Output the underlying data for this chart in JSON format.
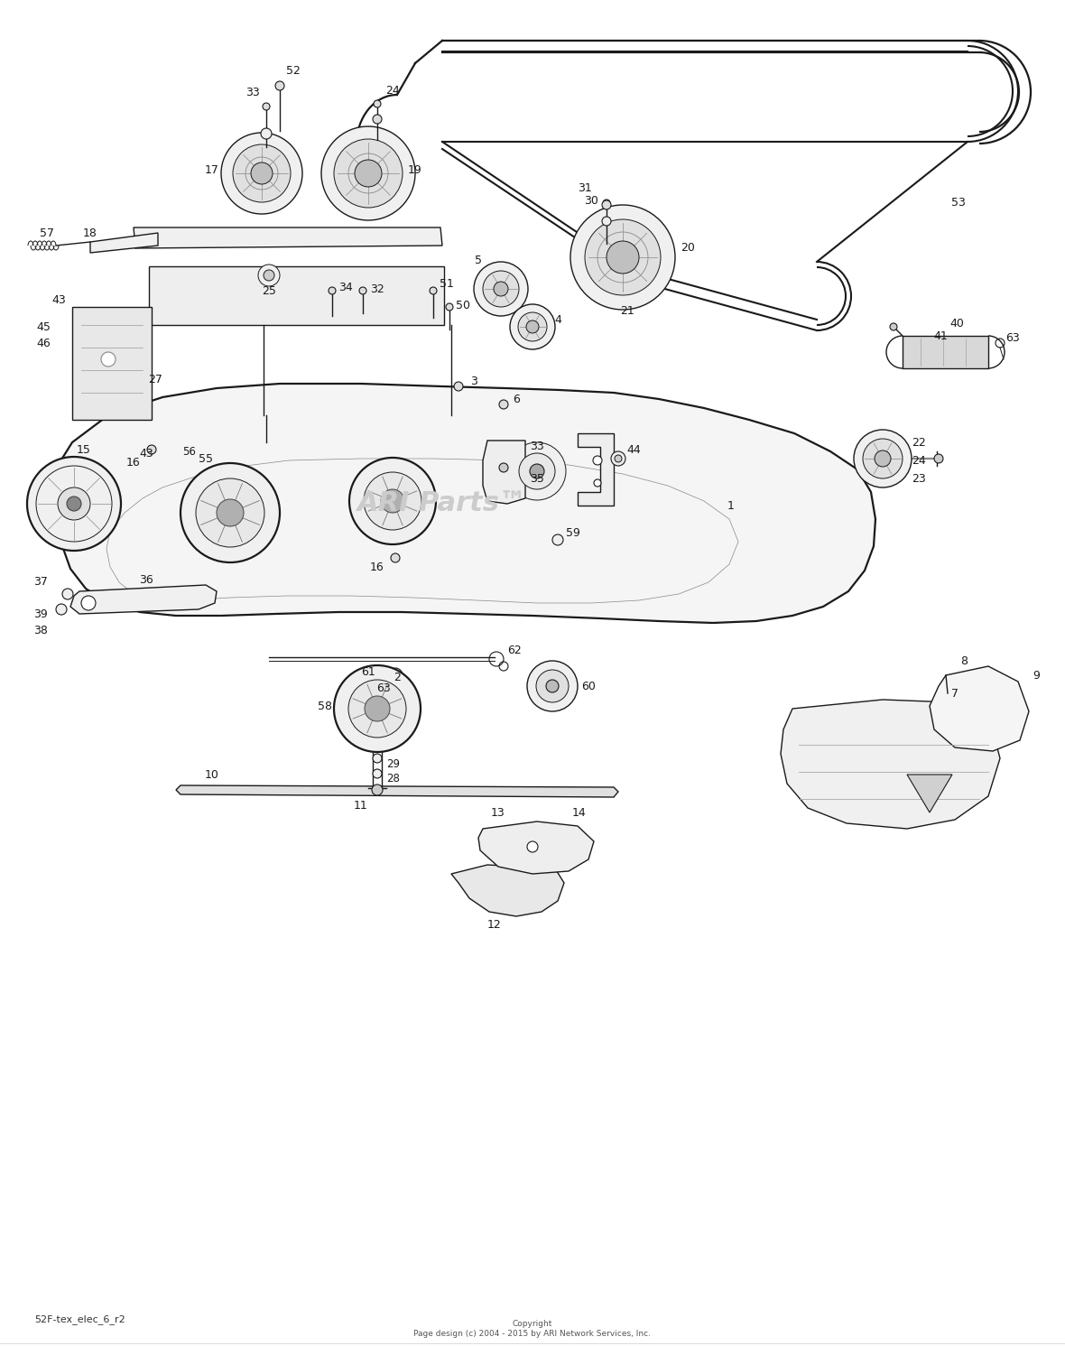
{
  "background_color": "#ffffff",
  "watermark_text": "ARI Parts™",
  "watermark_color": "#cccccc",
  "watermark_fontsize": 22,
  "bottom_left_text": "52F-tex_elec_6_r2",
  "copyright_text": "Copyright\nPage design (c) 2004 - 2015 by ARI Network Services, Inc.",
  "border_color": "#999999",
  "col": "#1a1a1a",
  "col_gray": "#666666"
}
